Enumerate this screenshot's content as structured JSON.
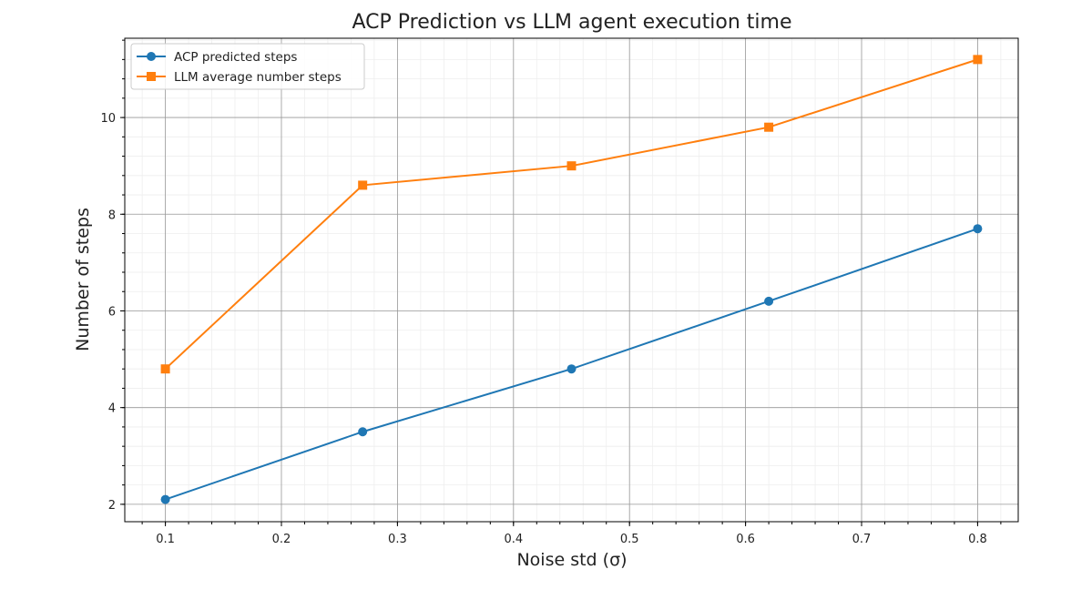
{
  "chart_data": {
    "type": "line",
    "title": "ACP Prediction vs LLM agent execution time",
    "xlabel": "Noise std (σ)",
    "ylabel": "Number of steps",
    "xlim": [
      0.065,
      0.835
    ],
    "ylim": [
      1.64,
      11.64
    ],
    "xticks": [
      0.1,
      0.2,
      0.3,
      0.4,
      0.5,
      0.6,
      0.7,
      0.8
    ],
    "xtick_labels": [
      "0.1",
      "0.2",
      "0.3",
      "0.4",
      "0.5",
      "0.6",
      "0.7",
      "0.8"
    ],
    "yticks": [
      2,
      4,
      6,
      8,
      10
    ],
    "ytick_labels": [
      "2",
      "4",
      "6",
      "8",
      "10"
    ],
    "grid": true,
    "minor_grid": true,
    "legend_position": "top-left",
    "x": [
      0.1,
      0.27,
      0.45,
      0.62,
      0.8
    ],
    "series": [
      {
        "name": "ACP predicted steps",
        "values": [
          2.1,
          3.5,
          4.8,
          6.2,
          7.7
        ],
        "color": "#1f77b4",
        "marker": "circle"
      },
      {
        "name": "LLM average number steps",
        "values": [
          4.8,
          8.6,
          9.0,
          9.8,
          11.2
        ],
        "color": "#ff7f0e",
        "marker": "square"
      }
    ]
  }
}
